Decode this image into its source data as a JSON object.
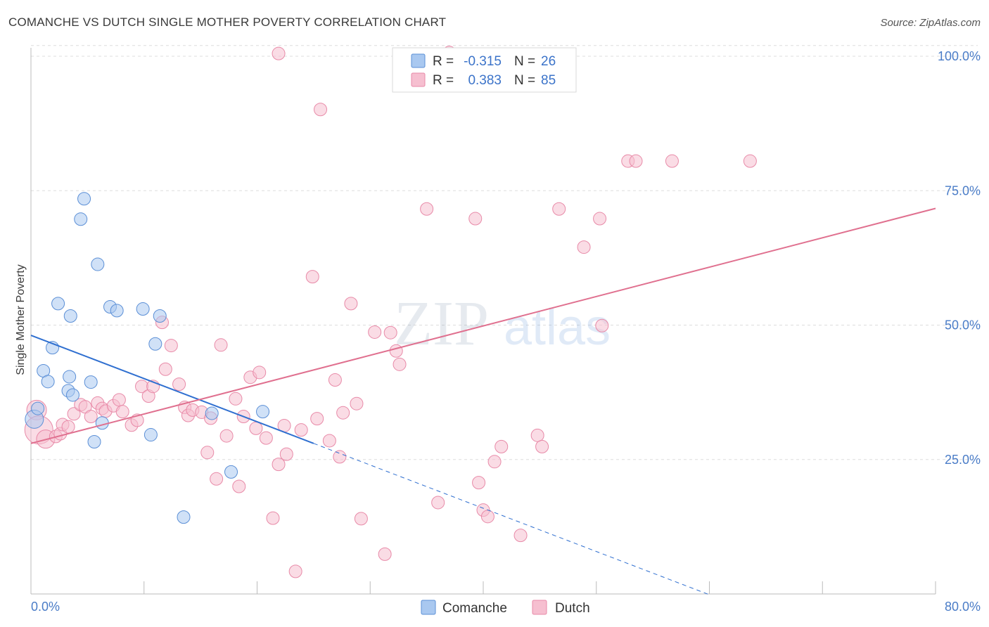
{
  "title": "COMANCHE VS DUTCH SINGLE MOTHER POVERTY CORRELATION CHART",
  "source": "Source: ZipAtlas.com",
  "legend": {
    "r_label": "R =",
    "n_label": "N =",
    "rows": [
      {
        "r": "-0.315",
        "n": "26"
      },
      {
        "r": "0.383",
        "n": "85"
      }
    ]
  },
  "watermark": {
    "zip": "ZIP",
    "atlas": "atlas"
  },
  "colors": {
    "comanche_fill": "#a9c8f0",
    "comanche_stroke": "#5b8fd6",
    "comanche_line": "#2f6fd0",
    "dutch_fill": "#f6bfd0",
    "dutch_stroke": "#e88aa8",
    "dutch_line": "#e0708f",
    "tick_text": "#4a7cc7",
    "grid": "#dddddd"
  },
  "chart_data": {
    "type": "scatter",
    "title": "COMANCHE VS DUTCH SINGLE MOTHER POVERTY CORRELATION CHART",
    "xlabel": "",
    "ylabel": "Single Mother Poverty",
    "xlim": [
      0,
      80
    ],
    "ylim": [
      0,
      105
    ],
    "x_tick_labels": [
      "0.0%",
      "80.0%"
    ],
    "y_ticks": [
      25,
      50,
      75,
      100
    ],
    "y_tick_labels": [
      "25.0%",
      "50.0%",
      "75.0%",
      "100.0%"
    ],
    "grid": true,
    "legend_position": "top-center",
    "series": [
      {
        "name": "Comanche",
        "r": -0.315,
        "n": 26,
        "trend": {
          "x0": 0,
          "y0": 48.1,
          "x1": 25.0,
          "y1": 28.0,
          "dashed_to_x": 60.0
        },
        "points": [
          [
            0.3,
            32.5,
            13
          ],
          [
            0.6,
            34.5,
            9
          ],
          [
            1.1,
            41.5,
            9
          ],
          [
            1.5,
            39.5,
            9
          ],
          [
            1.9,
            45.8,
            9
          ],
          [
            2.4,
            54.0,
            9
          ],
          [
            3.3,
            37.8,
            9
          ],
          [
            3.4,
            40.4,
            9
          ],
          [
            3.5,
            51.7,
            9
          ],
          [
            3.7,
            37.0,
            9
          ],
          [
            5.3,
            39.4,
            9
          ],
          [
            4.4,
            69.7,
            9
          ],
          [
            4.7,
            73.5,
            9
          ],
          [
            5.6,
            28.3,
            9
          ],
          [
            5.9,
            61.3,
            9
          ],
          [
            6.3,
            31.8,
            9
          ],
          [
            7.0,
            53.4,
            9
          ],
          [
            7.6,
            52.7,
            9
          ],
          [
            9.9,
            53.0,
            9
          ],
          [
            10.6,
            29.6,
            9
          ],
          [
            11.0,
            46.5,
            9
          ],
          [
            11.4,
            51.7,
            9
          ],
          [
            13.5,
            14.3,
            9
          ],
          [
            16.0,
            33.6,
            9
          ],
          [
            17.7,
            22.7,
            9
          ],
          [
            20.5,
            33.9,
            9
          ]
        ]
      },
      {
        "name": "Dutch",
        "r": 0.383,
        "n": 85,
        "trend": {
          "x0": 0,
          "y0": 28.0,
          "x1": 80.0,
          "y1": 71.7
        },
        "points": [
          [
            0.5,
            34.2,
            14
          ],
          [
            0.7,
            30.5,
            20
          ],
          [
            1.3,
            28.8,
            13
          ],
          [
            2.2,
            29.3,
            9
          ],
          [
            2.6,
            29.8,
            9
          ],
          [
            2.8,
            31.5,
            9
          ],
          [
            3.3,
            31.1,
            9
          ],
          [
            3.8,
            33.5,
            9
          ],
          [
            4.4,
            35.2,
            9
          ],
          [
            4.8,
            34.8,
            9
          ],
          [
            5.3,
            33.0,
            9
          ],
          [
            5.9,
            35.5,
            9
          ],
          [
            6.3,
            34.5,
            9
          ],
          [
            6.6,
            34.0,
            9
          ],
          [
            7.3,
            35.0,
            9
          ],
          [
            7.8,
            36.1,
            9
          ],
          [
            8.1,
            33.9,
            9
          ],
          [
            8.9,
            31.4,
            9
          ],
          [
            9.4,
            32.3,
            9
          ],
          [
            9.8,
            38.6,
            9
          ],
          [
            10.4,
            36.8,
            9
          ],
          [
            10.8,
            38.6,
            9
          ],
          [
            11.6,
            50.5,
            9
          ],
          [
            11.9,
            41.8,
            9
          ],
          [
            12.4,
            46.2,
            9
          ],
          [
            13.1,
            39.0,
            9
          ],
          [
            13.6,
            34.7,
            9
          ],
          [
            13.9,
            33.2,
            9
          ],
          [
            14.3,
            34.2,
            9
          ],
          [
            15.1,
            33.8,
            9
          ],
          [
            15.6,
            26.3,
            9
          ],
          [
            15.9,
            32.7,
            9
          ],
          [
            16.4,
            21.4,
            9
          ],
          [
            16.8,
            46.3,
            9
          ],
          [
            17.3,
            29.4,
            9
          ],
          [
            18.1,
            36.3,
            9
          ],
          [
            18.4,
            20.0,
            9
          ],
          [
            18.8,
            33.0,
            9
          ],
          [
            19.4,
            40.3,
            9
          ],
          [
            19.9,
            30.8,
            9
          ],
          [
            20.2,
            41.2,
            9
          ],
          [
            20.8,
            29.0,
            9
          ],
          [
            21.4,
            14.1,
            9
          ],
          [
            21.9,
            24.1,
            9
          ],
          [
            22.4,
            31.3,
            9
          ],
          [
            22.6,
            26.0,
            9
          ],
          [
            23.4,
            4.2,
            9
          ],
          [
            23.9,
            30.5,
            9
          ],
          [
            24.9,
            59.0,
            9
          ],
          [
            25.3,
            32.6,
            9
          ],
          [
            25.6,
            90.1,
            9
          ],
          [
            26.4,
            28.5,
            9
          ],
          [
            26.9,
            39.8,
            9
          ],
          [
            27.3,
            25.5,
            9
          ],
          [
            27.6,
            33.7,
            9
          ],
          [
            28.3,
            54.0,
            9
          ],
          [
            28.8,
            35.4,
            9
          ],
          [
            29.2,
            14.0,
            9
          ],
          [
            30.4,
            48.7,
            9
          ],
          [
            31.3,
            7.4,
            9
          ],
          [
            31.8,
            48.6,
            9
          ],
          [
            32.3,
            45.2,
            9
          ],
          [
            32.6,
            42.7,
            9
          ],
          [
            35.0,
            71.6,
            9
          ],
          [
            36.0,
            17.0,
            9
          ],
          [
            37.0,
            100.7,
            9
          ],
          [
            39.3,
            69.8,
            9
          ],
          [
            39.6,
            20.7,
            9
          ],
          [
            40.0,
            15.6,
            9
          ],
          [
            40.4,
            14.4,
            9
          ],
          [
            41.0,
            24.6,
            9
          ],
          [
            41.6,
            27.4,
            9
          ],
          [
            43.3,
            10.9,
            9
          ],
          [
            44.8,
            29.5,
            9
          ],
          [
            45.2,
            27.4,
            9
          ],
          [
            46.7,
            71.6,
            9
          ],
          [
            48.9,
            64.5,
            9
          ],
          [
            50.3,
            69.8,
            9
          ],
          [
            50.5,
            49.9,
            9
          ],
          [
            52.8,
            80.5,
            9
          ],
          [
            53.5,
            80.5,
            9
          ],
          [
            56.7,
            80.5,
            9
          ],
          [
            63.6,
            80.5,
            9
          ],
          [
            21.9,
            100.5,
            9
          ],
          [
            36.6,
            100.3,
            9
          ]
        ]
      }
    ]
  },
  "bottom_legend": [
    "Comanche",
    "Dutch"
  ]
}
